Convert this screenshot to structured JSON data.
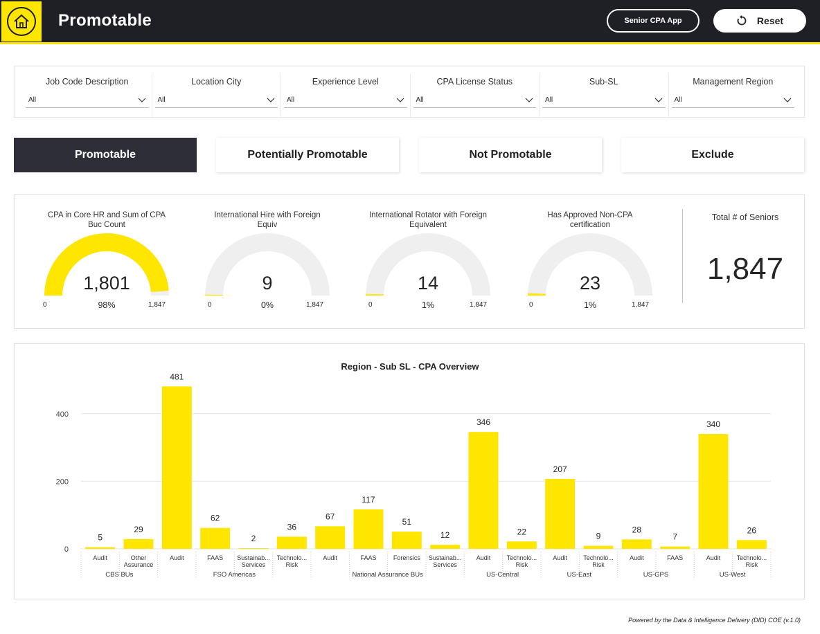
{
  "header": {
    "title": "Promotable",
    "app_button": "Senior CPA App",
    "reset_button": "Reset",
    "accent": "#ffe600",
    "bg": "#1f1f26"
  },
  "filters": [
    {
      "label": "Job Code Description",
      "value": "All"
    },
    {
      "label": "Location City",
      "value": "All"
    },
    {
      "label": "Experience Level",
      "value": "All"
    },
    {
      "label": "CPA License Status",
      "value": "All"
    },
    {
      "label": "Sub-SL",
      "value": "All"
    },
    {
      "label": "Management Region",
      "value": "All"
    }
  ],
  "tabs": [
    {
      "label": "Promotable",
      "active": true
    },
    {
      "label": "Potentially Promotable",
      "active": false
    },
    {
      "label": "Not Promotable",
      "active": false
    },
    {
      "label": "Exclude",
      "active": false
    }
  ],
  "gauges": [
    {
      "title_line1": "CPA in Core HR and Sum of CPA",
      "title_line2": "Buc Count",
      "value": "1,801",
      "percent": "98%",
      "min": "0",
      "max": "1,847",
      "fraction": 0.975
    },
    {
      "title_line1": "International Hire with Foreign",
      "title_line2": "Equiv",
      "value": "9",
      "percent": "0%",
      "min": "0",
      "max": "1,847",
      "fraction": 0.005
    },
    {
      "title_line1": "International Rotator with Foreign",
      "title_line2": "Equivalent",
      "value": "14",
      "percent": "1%",
      "min": "0",
      "max": "1,847",
      "fraction": 0.008
    },
    {
      "title_line1": "Has Approved Non-CPA",
      "title_line2": "certification",
      "value": "23",
      "percent": "1%",
      "min": "0",
      "max": "1,847",
      "fraction": 0.012
    }
  ],
  "total": {
    "title": "Total # of Seniors",
    "value": "1,847"
  },
  "chart_data": {
    "type": "bar",
    "title": "Region - Sub SL - CPA Overview",
    "ylim": [
      0,
      500
    ],
    "yticks": [
      0,
      200,
      400
    ],
    "color": "#ffe600",
    "groups": [
      {
        "name": "CBS BUs",
        "bars": [
          {
            "line1": "Audit",
            "line2": "",
            "value": 5
          },
          {
            "line1": "Other",
            "line2": "Assurance",
            "value": 29
          }
        ]
      },
      {
        "name": "FSO Americas",
        "bars": [
          {
            "line1": "Audit",
            "line2": "",
            "value": 481
          },
          {
            "line1": "FAAS",
            "line2": "",
            "value": 62
          },
          {
            "line1": "Sustainab...",
            "line2": "Services",
            "value": 2
          },
          {
            "line1": "Technolo...",
            "line2": "Risk",
            "value": 36
          }
        ]
      },
      {
        "name": "National Assurance BUs",
        "bars": [
          {
            "line1": "Audit",
            "line2": "",
            "value": 67
          },
          {
            "line1": "FAAS",
            "line2": "",
            "value": 117
          },
          {
            "line1": "Forensics",
            "line2": "",
            "value": 51
          },
          {
            "line1": "Sustainab...",
            "line2": "Services",
            "value": 12
          }
        ]
      },
      {
        "name": "US-Central",
        "bars": [
          {
            "line1": "Audit",
            "line2": "",
            "value": 346
          },
          {
            "line1": "Technolo...",
            "line2": "Risk",
            "value": 22
          }
        ]
      },
      {
        "name": "US-East",
        "bars": [
          {
            "line1": "Audit",
            "line2": "",
            "value": 207
          },
          {
            "line1": "Technolo...",
            "line2": "Risk",
            "value": 9
          }
        ]
      },
      {
        "name": "US-GPS",
        "bars": [
          {
            "line1": "Audit",
            "line2": "",
            "value": 28
          },
          {
            "line1": "FAAS",
            "line2": "",
            "value": 7
          }
        ]
      },
      {
        "name": "US-West",
        "bars": [
          {
            "line1": "Audit",
            "line2": "",
            "value": 340
          },
          {
            "line1": "Technolo...",
            "line2": "Risk",
            "value": 26
          }
        ]
      }
    ]
  },
  "footer": "Powered by the Data & Intelligence Delivery (DID) COE (v.1.0)"
}
